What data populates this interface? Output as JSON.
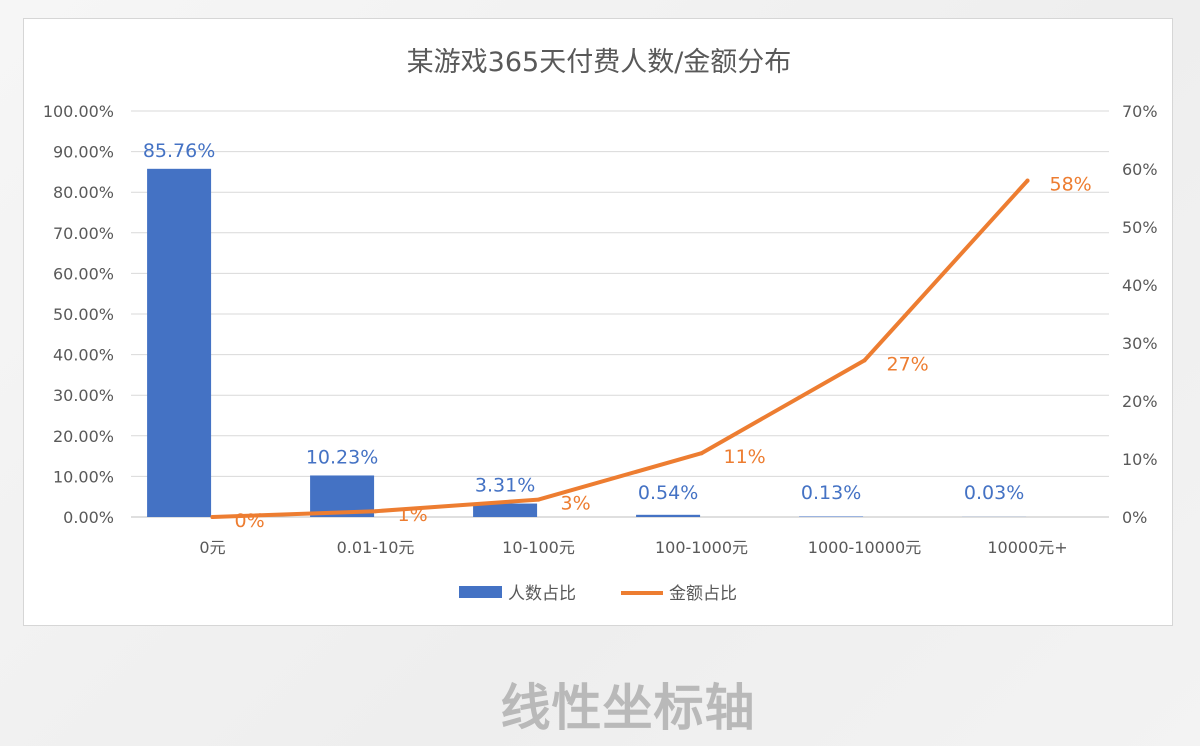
{
  "caption": "线性坐标轴",
  "colors": {
    "bar": "#4472c4",
    "line": "#ed7d31",
    "axis_text": "#595959",
    "grid": "#d9d9d9",
    "title": "#595959"
  },
  "chart_data": {
    "type": "bar+line",
    "title": "某游戏365天付费人数/金额分布",
    "categories": [
      "0元",
      "0.01-10元",
      "10-100元",
      "100-1000元",
      "1000-10000元",
      "10000元+"
    ],
    "grid": true,
    "legend_position": "bottom",
    "left_axis": {
      "range": [
        0,
        100
      ],
      "ticks": [
        "0.00%",
        "10.00%",
        "20.00%",
        "30.00%",
        "40.00%",
        "50.00%",
        "60.00%",
        "70.00%",
        "80.00%",
        "90.00%",
        "100.00%"
      ]
    },
    "right_axis": {
      "range": [
        0,
        70
      ],
      "ticks": [
        "0%",
        "10%",
        "20%",
        "30%",
        "40%",
        "50%",
        "60%",
        "70%"
      ]
    },
    "series": [
      {
        "name": "人数占比",
        "type": "bar",
        "axis": "left",
        "values": [
          85.76,
          10.23,
          3.31,
          0.54,
          0.13,
          0.03
        ],
        "labels": [
          "85.76%",
          "10.23%",
          "3.31%",
          "0.54%",
          "0.13%",
          "0.03%"
        ]
      },
      {
        "name": "金额占比",
        "type": "line",
        "axis": "right",
        "values": [
          0,
          1,
          3,
          11,
          27,
          58
        ],
        "labels": [
          "0%",
          "1%",
          "3%",
          "11%",
          "27%",
          "58%"
        ]
      }
    ]
  }
}
